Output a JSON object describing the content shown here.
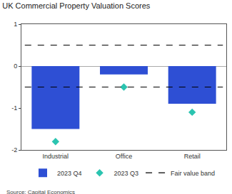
{
  "chart_data": {
    "type": "bar",
    "title": "UK Commercial Property Valuation Scores",
    "source": "Source: Capital Economics",
    "categories": [
      "Industrial",
      "Office",
      "Retail"
    ],
    "series": [
      {
        "name": "2023 Q4",
        "type": "bar",
        "color": "#2e4fd4",
        "values": [
          -1.5,
          -0.2,
          -0.9
        ]
      },
      {
        "name": "2023 Q3",
        "type": "scatter",
        "marker": "diamond",
        "color": "#2bc4b0",
        "values": [
          -1.8,
          -0.5,
          -1.1
        ]
      },
      {
        "name": "Fair value band",
        "type": "line",
        "line_style": "dash",
        "color": "#000000",
        "upper": 0.5,
        "lower": -0.5
      }
    ],
    "ylim": [
      -2,
      1
    ],
    "yticks": [
      -2,
      -1,
      0,
      1
    ],
    "grid": false,
    "legend": "bottom"
  }
}
